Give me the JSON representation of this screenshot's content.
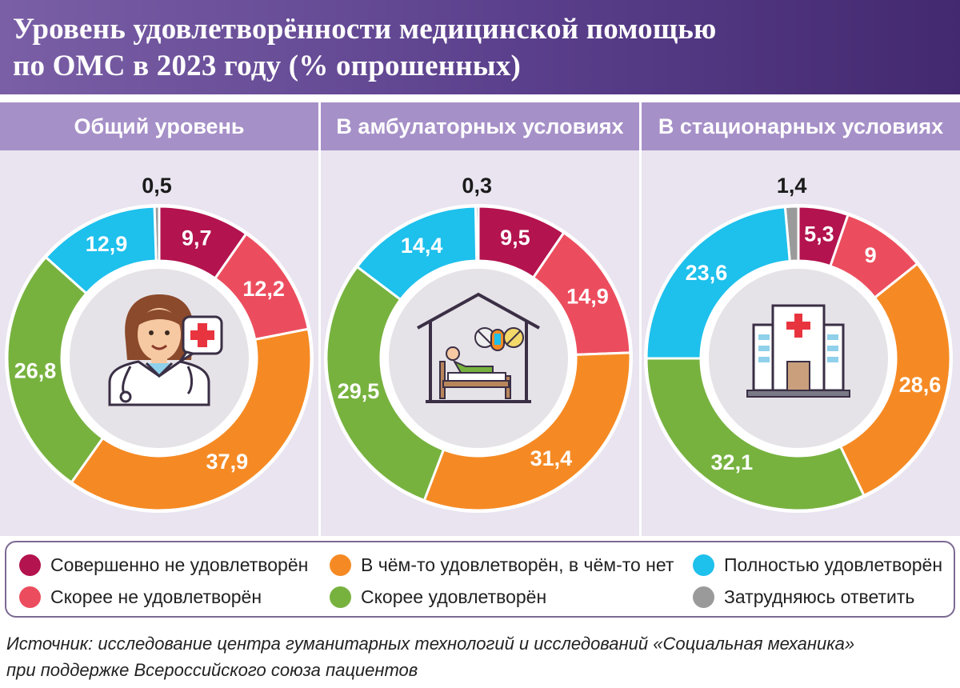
{
  "header": {
    "title_line1": "Уровень удовлетворённости медицинской помощью",
    "title_line2": "по ОМС в 2023 году (% опрошенных)"
  },
  "chart_data": [
    {
      "type": "pie",
      "title": "Общий уровень",
      "categories": [
        "Совершенно не удовлетворён",
        "Скорее не удовлетворён",
        "В чём-то удовлетворён, в чём-то нет",
        "Скорее удовлетворён",
        "Полностью удовлетворён",
        "Затрудняюсь ответить"
      ],
      "values": [
        9.7,
        12.2,
        37.9,
        26.8,
        12.9,
        0.5
      ],
      "labels": [
        "9,7",
        "12,2",
        "37,9",
        "26,8",
        "12,9",
        "0,5"
      ],
      "center_icon": "doctor-icon"
    },
    {
      "type": "pie",
      "title": "В амбулаторных условиях",
      "categories": [
        "Совершенно не удовлетворён",
        "Скорее не удовлетворён",
        "В чём-то удовлетворён, в чём-то нет",
        "Скорее удовлетворён",
        "Полностью удовлетворён",
        "Затрудняюсь ответить"
      ],
      "values": [
        9.5,
        14.9,
        31.4,
        29.5,
        14.4,
        0.3
      ],
      "labels": [
        "9,5",
        "14,9",
        "31,4",
        "29,5",
        "14,4",
        "0,3"
      ],
      "center_icon": "home-patient-icon"
    },
    {
      "type": "pie",
      "title": "В стационарных условиях",
      "categories": [
        "Совершенно не удовлетворён",
        "Скорее не удовлетворён",
        "В чём-то удовлетворён, в чём-то нет",
        "Скорее удовлетворён",
        "Полностью удовлетворён",
        "Затрудняюсь ответить"
      ],
      "values": [
        5.3,
        9,
        28.6,
        32.1,
        23.6,
        1.4
      ],
      "labels": [
        "5,3",
        "9",
        "28,6",
        "32,1",
        "23,6",
        "1,4"
      ],
      "center_icon": "hospital-icon"
    }
  ],
  "colors": {
    "Совершенно не удовлетворён": "#b3134e",
    "Скорее не удовлетворён": "#ec4d5e",
    "В чём-то удовлетворён, в чём-то нет": "#f58a24",
    "Скорее удовлетворён": "#77b23f",
    "Полностью удовлетворён": "#1ec0ec",
    "Затрудняюсь ответить": "#9a9a9a"
  },
  "legend": [
    {
      "label": "Совершенно не удовлетворён",
      "color": "#b3134e"
    },
    {
      "label": "Скорее не удовлетворён",
      "color": "#ec4d5e"
    },
    {
      "label": "В чём-то удовлетворён, в чём-то нет",
      "color": "#f58a24"
    },
    {
      "label": "Скорее удовлетворён",
      "color": "#77b23f"
    },
    {
      "label": "Полностью удовлетворён",
      "color": "#1ec0ec"
    },
    {
      "label": "Затрудняюсь ответить",
      "color": "#9a9a9a"
    }
  ],
  "source": {
    "line1": "Источник: исследование центра гуманитарных технологий и исследований «Социальная механика»",
    "line2": "при поддержке Всероссийского союза пациентов"
  }
}
